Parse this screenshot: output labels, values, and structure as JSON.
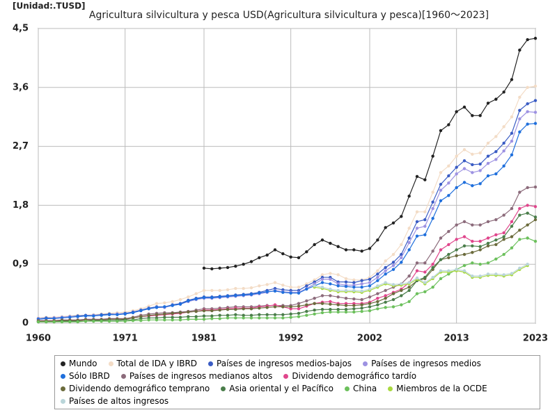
{
  "chart_data": {
    "type": "line",
    "title": "Agricultura silvicultura y pesca USD(Agricultura silvicultura y pesca)[1960～2023]",
    "unit_label": "[Unidad:.TUSD]",
    "x": [
      1960,
      1961,
      1962,
      1963,
      1964,
      1965,
      1966,
      1967,
      1968,
      1969,
      1970,
      1971,
      1972,
      1973,
      1974,
      1975,
      1976,
      1977,
      1978,
      1979,
      1980,
      1981,
      1982,
      1983,
      1984,
      1985,
      1986,
      1987,
      1988,
      1989,
      1990,
      1991,
      1992,
      1993,
      1994,
      1995,
      1996,
      1997,
      1998,
      1999,
      2000,
      2001,
      2002,
      2003,
      2004,
      2005,
      2006,
      2007,
      2008,
      2009,
      2010,
      2011,
      2012,
      2013,
      2014,
      2015,
      2016,
      2017,
      2018,
      2019,
      2020,
      2021,
      2022,
      2023
    ],
    "xlim": [
      1960,
      2023
    ],
    "xticks": [
      1960,
      1971,
      1981,
      1992,
      2002,
      2013,
      2023
    ],
    "ylim": [
      0,
      4.5
    ],
    "yticks": [
      0,
      {
        "value": 0.9,
        "label": "0,9"
      },
      {
        "value": 1.8,
        "label": "1,8"
      },
      {
        "value": 2.7,
        "label": "2,7"
      },
      {
        "value": 3.6,
        "label": "3,6"
      },
      {
        "value": 4.5,
        "label": "4,5"
      }
    ],
    "grid": true,
    "legend": "bottom",
    "series": [
      {
        "name": "Mundo",
        "color": "#222222",
        "values": [
          null,
          null,
          null,
          null,
          null,
          null,
          null,
          null,
          null,
          null,
          null,
          null,
          null,
          null,
          null,
          null,
          null,
          null,
          null,
          null,
          null,
          0.84,
          0.83,
          0.84,
          0.85,
          0.87,
          0.9,
          0.94,
          1.0,
          1.04,
          1.12,
          1.06,
          1.01,
          1.0,
          1.09,
          1.2,
          1.27,
          1.22,
          1.17,
          1.12,
          1.12,
          1.1,
          1.14,
          1.27,
          1.46,
          1.53,
          1.63,
          1.94,
          2.24,
          2.19,
          2.55,
          2.94,
          3.03,
          3.23,
          3.3,
          3.17,
          3.17,
          3.36,
          3.42,
          3.53,
          3.72,
          4.17,
          4.33,
          4.35
        ]
      },
      {
        "name": "Total de IDA y IBRD",
        "color": "#f3dcc6",
        "values": [
          0.08,
          0.09,
          0.09,
          0.1,
          0.11,
          0.12,
          0.12,
          0.13,
          0.14,
          0.15,
          0.16,
          0.17,
          0.19,
          0.22,
          0.26,
          0.3,
          0.31,
          0.33,
          0.36,
          0.4,
          0.45,
          0.5,
          0.5,
          0.5,
          0.51,
          0.53,
          0.53,
          0.54,
          0.57,
          0.59,
          0.62,
          0.58,
          0.55,
          0.55,
          0.6,
          0.66,
          0.74,
          0.76,
          0.74,
          0.68,
          0.66,
          0.66,
          0.7,
          0.8,
          0.95,
          1.05,
          1.2,
          1.45,
          1.7,
          1.7,
          2.0,
          2.3,
          2.4,
          2.55,
          2.65,
          2.58,
          2.6,
          2.75,
          2.85,
          3.0,
          3.15,
          3.45,
          3.6,
          3.62
        ]
      },
      {
        "name": "Países de ingresos medios-bajos",
        "color": "#3a5cc4",
        "values": [
          0.07,
          0.08,
          0.08,
          0.09,
          0.1,
          0.11,
          0.12,
          0.12,
          0.13,
          0.14,
          0.14,
          0.15,
          0.17,
          0.2,
          0.23,
          0.25,
          0.25,
          0.28,
          0.3,
          0.35,
          0.38,
          0.4,
          0.4,
          0.41,
          0.42,
          0.43,
          0.44,
          0.45,
          0.47,
          0.5,
          0.53,
          0.51,
          0.5,
          0.5,
          0.57,
          0.63,
          0.7,
          0.7,
          0.63,
          0.63,
          0.62,
          0.65,
          0.67,
          0.75,
          0.85,
          0.93,
          1.05,
          1.3,
          1.55,
          1.58,
          1.85,
          2.12,
          2.25,
          2.38,
          2.48,
          2.42,
          2.43,
          2.55,
          2.62,
          2.75,
          2.9,
          3.25,
          3.35,
          3.4
        ]
      },
      {
        "name": "Países de ingresos medios",
        "color": "#9d92e2",
        "values": [
          0.07,
          0.07,
          0.08,
          0.09,
          0.1,
          0.1,
          0.11,
          0.12,
          0.12,
          0.13,
          0.14,
          0.14,
          0.16,
          0.19,
          0.22,
          0.24,
          0.24,
          0.27,
          0.29,
          0.33,
          0.36,
          0.38,
          0.38,
          0.39,
          0.4,
          0.41,
          0.42,
          0.43,
          0.45,
          0.47,
          0.5,
          0.48,
          0.47,
          0.47,
          0.53,
          0.6,
          0.67,
          0.67,
          0.6,
          0.58,
          0.58,
          0.6,
          0.62,
          0.7,
          0.8,
          0.88,
          1.0,
          1.23,
          1.45,
          1.48,
          1.75,
          2.03,
          2.14,
          2.28,
          2.36,
          2.3,
          2.33,
          2.44,
          2.5,
          2.63,
          2.78,
          3.12,
          3.23,
          3.22
        ]
      },
      {
        "name": "Sólo IBRD",
        "color": "#1f6fdc",
        "values": [
          0.06,
          0.07,
          0.07,
          0.08,
          0.09,
          0.1,
          0.11,
          0.11,
          0.12,
          0.13,
          0.13,
          0.14,
          0.16,
          0.19,
          0.22,
          0.24,
          0.25,
          0.27,
          0.29,
          0.34,
          0.37,
          0.39,
          0.39,
          0.4,
          0.41,
          0.42,
          0.43,
          0.44,
          0.46,
          0.48,
          0.49,
          0.47,
          0.46,
          0.46,
          0.52,
          0.57,
          0.62,
          0.6,
          0.57,
          0.56,
          0.55,
          0.55,
          0.57,
          0.65,
          0.75,
          0.82,
          0.93,
          1.12,
          1.33,
          1.35,
          1.6,
          1.87,
          1.95,
          2.07,
          2.15,
          2.1,
          2.13,
          2.25,
          2.28,
          2.4,
          2.57,
          2.92,
          3.04,
          3.05
        ]
      },
      {
        "name": "Países de ingresos medianos altos",
        "color": "#8c6b7b",
        "values": [
          0.04,
          0.04,
          0.04,
          0.05,
          0.05,
          0.05,
          0.06,
          0.06,
          0.06,
          0.07,
          0.07,
          0.07,
          0.09,
          0.12,
          0.14,
          0.15,
          0.16,
          0.16,
          0.17,
          0.18,
          0.2,
          0.22,
          0.22,
          0.23,
          0.24,
          0.25,
          0.25,
          0.25,
          0.26,
          0.27,
          0.27,
          0.27,
          0.27,
          0.3,
          0.34,
          0.38,
          0.42,
          0.42,
          0.4,
          0.38,
          0.37,
          0.36,
          0.4,
          0.45,
          0.5,
          0.55,
          0.6,
          0.72,
          0.92,
          0.92,
          1.1,
          1.3,
          1.4,
          1.5,
          1.55,
          1.5,
          1.5,
          1.55,
          1.58,
          1.65,
          1.75,
          2.0,
          2.07,
          2.08
        ]
      },
      {
        "name": "Dividendo demográfico tardío",
        "color": "#e0468c",
        "values": [
          0.03,
          0.03,
          0.03,
          0.04,
          0.04,
          0.04,
          0.05,
          0.05,
          0.05,
          0.06,
          0.06,
          0.06,
          0.08,
          0.1,
          0.11,
          0.12,
          0.13,
          0.14,
          0.15,
          0.17,
          0.18,
          0.2,
          0.2,
          0.21,
          0.22,
          0.23,
          0.23,
          0.23,
          0.25,
          0.26,
          0.28,
          0.25,
          0.22,
          0.22,
          0.26,
          0.3,
          0.32,
          0.33,
          0.3,
          0.3,
          0.3,
          0.3,
          0.32,
          0.38,
          0.42,
          0.47,
          0.52,
          0.62,
          0.8,
          0.78,
          0.9,
          1.12,
          1.2,
          1.28,
          1.32,
          1.25,
          1.25,
          1.3,
          1.35,
          1.38,
          1.55,
          1.75,
          1.8,
          1.78
        ]
      },
      {
        "name": "Dividendo demográfico temprano",
        "color": "#6b6b3c",
        "values": [
          0.03,
          0.03,
          0.03,
          0.04,
          0.04,
          0.04,
          0.05,
          0.05,
          0.05,
          0.06,
          0.06,
          0.06,
          0.08,
          0.1,
          0.12,
          0.13,
          0.14,
          0.15,
          0.16,
          0.17,
          0.18,
          0.19,
          0.19,
          0.2,
          0.21,
          0.21,
          0.22,
          0.22,
          0.23,
          0.24,
          0.25,
          0.25,
          0.25,
          0.26,
          0.28,
          0.3,
          0.3,
          0.29,
          0.28,
          0.27,
          0.27,
          0.28,
          0.3,
          0.33,
          0.38,
          0.45,
          0.5,
          0.55,
          0.65,
          0.68,
          0.82,
          0.97,
          1.0,
          1.03,
          1.05,
          1.08,
          1.12,
          1.18,
          1.2,
          1.28,
          1.32,
          1.42,
          1.5,
          1.58
        ]
      },
      {
        "name": "Asia oriental y el Pacífico",
        "color": "#4a7d4a",
        "values": [
          0.02,
          0.02,
          0.02,
          0.03,
          0.03,
          0.03,
          0.03,
          0.04,
          0.04,
          0.04,
          0.04,
          0.05,
          0.05,
          0.07,
          0.08,
          0.08,
          0.09,
          0.09,
          0.09,
          0.1,
          0.1,
          0.11,
          0.11,
          0.12,
          0.12,
          0.13,
          0.12,
          0.12,
          0.13,
          0.13,
          0.13,
          0.13,
          0.14,
          0.15,
          0.18,
          0.2,
          0.21,
          0.21,
          0.21,
          0.21,
          0.22,
          0.23,
          0.25,
          0.28,
          0.32,
          0.36,
          0.42,
          0.5,
          0.65,
          0.7,
          0.85,
          0.97,
          1.05,
          1.12,
          1.18,
          1.18,
          1.17,
          1.22,
          1.27,
          1.32,
          1.48,
          1.65,
          1.68,
          1.62
        ]
      },
      {
        "name": "China",
        "color": "#6cc05c",
        "values": [
          0.02,
          0.02,
          0.02,
          0.02,
          0.02,
          0.02,
          0.03,
          0.03,
          0.03,
          0.03,
          0.03,
          0.03,
          0.04,
          0.04,
          0.05,
          0.05,
          0.05,
          0.05,
          0.05,
          0.06,
          0.06,
          0.06,
          0.07,
          0.07,
          0.08,
          0.08,
          0.08,
          0.08,
          0.08,
          0.08,
          0.08,
          0.08,
          0.09,
          0.1,
          0.12,
          0.14,
          0.16,
          0.17,
          0.17,
          0.17,
          0.17,
          0.18,
          0.19,
          0.22,
          0.24,
          0.25,
          0.28,
          0.33,
          0.45,
          0.48,
          0.55,
          0.68,
          0.75,
          0.82,
          0.88,
          0.92,
          0.9,
          0.92,
          0.98,
          1.05,
          1.15,
          1.28,
          1.3,
          1.25
        ]
      },
      {
        "name": "Miembros de la OCDE",
        "color": "#a9d93f",
        "values": [
          null,
          null,
          null,
          null,
          null,
          null,
          null,
          null,
          null,
          null,
          null,
          null,
          null,
          null,
          null,
          null,
          null,
          null,
          null,
          null,
          null,
          null,
          null,
          null,
          null,
          null,
          null,
          null,
          null,
          null,
          null,
          null,
          null,
          null,
          null,
          0.55,
          0.53,
          0.5,
          0.48,
          0.48,
          0.48,
          0.47,
          0.5,
          0.55,
          0.6,
          0.57,
          0.58,
          0.6,
          0.67,
          0.6,
          0.68,
          0.78,
          0.78,
          0.8,
          0.78,
          0.7,
          0.7,
          0.73,
          0.73,
          0.72,
          0.74,
          0.82,
          0.88,
          null
        ]
      },
      {
        "name": "Países de altos ingresos",
        "color": "#b9d5d9",
        "values": [
          null,
          null,
          null,
          null,
          null,
          null,
          null,
          null,
          null,
          null,
          null,
          null,
          null,
          null,
          null,
          null,
          null,
          null,
          null,
          null,
          null,
          null,
          null,
          null,
          null,
          null,
          null,
          null,
          null,
          null,
          null,
          null,
          null,
          null,
          null,
          0.57,
          0.55,
          0.52,
          0.5,
          0.5,
          0.5,
          0.49,
          0.52,
          0.57,
          0.62,
          0.59,
          0.6,
          0.62,
          0.69,
          0.62,
          0.7,
          0.8,
          0.8,
          0.82,
          0.8,
          0.72,
          0.72,
          0.75,
          0.75,
          0.74,
          0.76,
          0.84,
          0.9,
          null
        ]
      }
    ]
  }
}
